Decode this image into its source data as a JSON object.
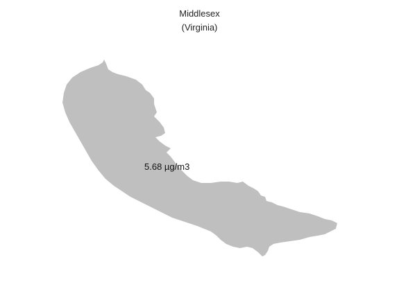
{
  "map": {
    "title": "Middlesex",
    "subtitle": "(Virginia)",
    "value_label": "5.68 µg/m3",
    "fill_color": "#bfbfbf",
    "background_color": "#ffffff"
  }
}
